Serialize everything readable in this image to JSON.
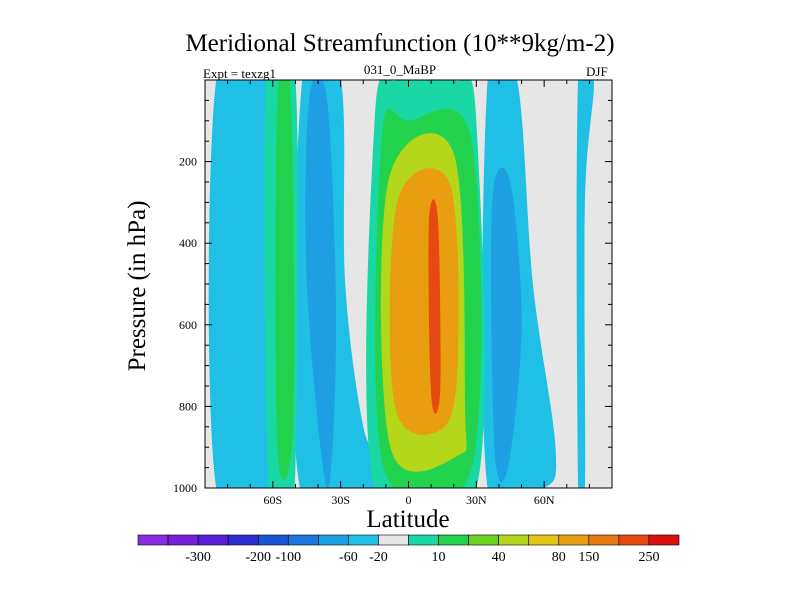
{
  "chart_data": {
    "type": "contour",
    "title": "Meridional Streamfunction (10**9kg/m-2)",
    "left_label": "Expt = texzg1",
    "center_label": "031_0_MaBP",
    "right_label": "DJF",
    "xlabel": "Latitude",
    "ylabel": "Pressure (in hPa)",
    "xlim": [
      -90,
      90
    ],
    "ylim": [
      1000,
      0
    ],
    "x_ticks": [
      {
        "value": -60,
        "label": "60S"
      },
      {
        "value": -30,
        "label": "30S"
      },
      {
        "value": 0,
        "label": "0"
      },
      {
        "value": 30,
        "label": "30N"
      },
      {
        "value": 60,
        "label": "60N"
      }
    ],
    "y_ticks": [
      {
        "value": 200,
        "label": "200"
      },
      {
        "value": 400,
        "label": "400"
      },
      {
        "value": 600,
        "label": "600"
      },
      {
        "value": 800,
        "label": "800"
      },
      {
        "value": 1000,
        "label": "1000"
      }
    ],
    "colorbar": {
      "colors": [
        "#8a2be2",
        "#7a1fdc",
        "#5a1ed8",
        "#2f2fd0",
        "#1c54d6",
        "#1a78de",
        "#1f9fe3",
        "#20c0e6",
        "#e6e6e6",
        "#19d8a5",
        "#24d34d",
        "#6bd320",
        "#b5d719",
        "#e3c714",
        "#e89e10",
        "#e8780f",
        "#e64a0e",
        "#dd0f0f"
      ],
      "labels": [
        {
          "after_index": 1,
          "text": "-300"
        },
        {
          "after_index": 3,
          "text": "-200"
        },
        {
          "after_index": 4,
          "text": "-100"
        },
        {
          "after_index": 6,
          "text": "-60"
        },
        {
          "after_index": 7,
          "text": "-20"
        },
        {
          "after_index": 9,
          "text": "10"
        },
        {
          "after_index": 11,
          "text": "40"
        },
        {
          "after_index": 13,
          "text": "80"
        },
        {
          "after_index": 14,
          "text": "150"
        },
        {
          "after_index": 16,
          "text": "250"
        }
      ]
    },
    "contours": [
      {
        "level": "-20",
        "color": "#20c0e6",
        "points": [
          [
            -85,
            1000
          ],
          [
            -85,
            0
          ],
          [
            -60,
            0
          ],
          [
            -58,
            300
          ],
          [
            -55,
            800
          ],
          [
            -56,
            1000
          ]
        ]
      },
      {
        "level": "-20",
        "color": "#20c0e6",
        "points": [
          [
            -48,
            1000
          ],
          [
            -47,
            0
          ],
          [
            -30,
            0
          ],
          [
            -28,
            500
          ],
          [
            -20,
            850
          ],
          [
            -10,
            1000
          ]
        ]
      },
      {
        "level": "-20",
        "color": "#20c0e6",
        "points": [
          [
            35,
            1000
          ],
          [
            35,
            0
          ],
          [
            48,
            0
          ],
          [
            55,
            500
          ],
          [
            65,
            900
          ],
          [
            60,
            1000
          ]
        ]
      },
      {
        "level": "-20",
        "color": "#20c0e6",
        "points": [
          [
            75,
            1000
          ],
          [
            75,
            0
          ],
          [
            82,
            0
          ],
          [
            78,
            300
          ],
          [
            78,
            1000
          ]
        ]
      },
      {
        "level": "-60",
        "color": "#1f9fe3",
        "points": [
          [
            -45,
            500
          ],
          [
            -44,
            50
          ],
          [
            -36,
            50
          ],
          [
            -32,
            600
          ],
          [
            -36,
            1000
          ]
        ]
      },
      {
        "level": "-60",
        "color": "#1f9fe3",
        "points": [
          [
            38,
            900
          ],
          [
            37,
            300
          ],
          [
            45,
            250
          ],
          [
            50,
            600
          ],
          [
            44,
            950
          ]
        ]
      },
      {
        "level": "10",
        "color": "#19d8a5",
        "points": [
          [
            -62,
            1000
          ],
          [
            -63,
            0
          ],
          [
            -50,
            0
          ],
          [
            -50,
            950
          ],
          [
            -55,
            1000
          ]
        ]
      },
      {
        "level": "10",
        "color": "#19d8a5",
        "points": [
          [
            -15,
            1000
          ],
          [
            -15,
            100
          ],
          [
            -5,
            0
          ],
          [
            20,
            0
          ],
          [
            30,
            100
          ],
          [
            30,
            1000
          ]
        ]
      },
      {
        "level": "40",
        "color": "#24d34d",
        "points": [
          [
            -58,
            900
          ],
          [
            -58,
            50
          ],
          [
            -52,
            50
          ],
          [
            -51,
            850
          ]
        ]
      },
      {
        "level": "40",
        "color": "#24d34d",
        "points": [
          [
            -11,
            950
          ],
          [
            -12,
            150
          ],
          [
            0,
            100
          ],
          [
            28,
            150
          ],
          [
            28,
            950
          ]
        ]
      },
      {
        "level": "80",
        "color": "#b5d719",
        "points": [
          [
            -8,
            900
          ],
          [
            -9,
            250
          ],
          [
            20,
            180
          ],
          [
            25,
            800
          ],
          [
            22,
            920
          ]
        ]
      },
      {
        "level": "150",
        "color": "#e89e10",
        "points": [
          [
            -6,
            800
          ],
          [
            -5,
            300
          ],
          [
            18,
            250
          ],
          [
            22,
            650
          ],
          [
            16,
            850
          ]
        ]
      },
      {
        "level": "250",
        "color": "#e64a0e",
        "points": [
          [
            10,
            770
          ],
          [
            9,
            350
          ],
          [
            13,
            340
          ],
          [
            14,
            760
          ]
        ]
      }
    ]
  }
}
